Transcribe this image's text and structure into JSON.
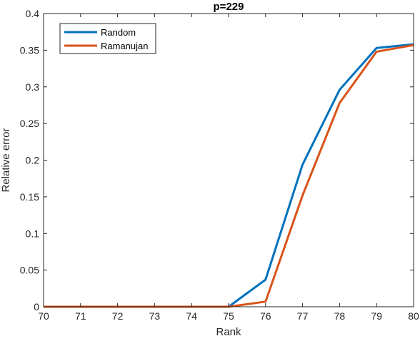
{
  "chart_data": {
    "type": "line",
    "title": "p=229",
    "xlabel": "Rank",
    "ylabel": "Relative error",
    "xlim": [
      70,
      80
    ],
    "ylim": [
      0,
      0.4
    ],
    "x_ticks": [
      "70",
      "71",
      "72",
      "73",
      "74",
      "75",
      "76",
      "77",
      "78",
      "79",
      "80"
    ],
    "y_ticks": [
      "0",
      "0.05",
      "0.1",
      "0.15",
      "0.2",
      "0.25",
      "0.3",
      "0.35",
      "0.4"
    ],
    "x": [
      70,
      71,
      72,
      73,
      74,
      75,
      76,
      77,
      78,
      79,
      80
    ],
    "series": [
      {
        "name": "Random",
        "color": "#0072BD",
        "values": [
          0,
          0,
          0,
          0,
          0,
          0,
          0.037,
          0.194,
          0.296,
          0.353,
          0.358
        ]
      },
      {
        "name": "Ramanujan",
        "color": "#D95319",
        "values": [
          0,
          0,
          0,
          0,
          0,
          0,
          0.007,
          0.152,
          0.278,
          0.348,
          0.357
        ]
      }
    ],
    "legend_position": "top-left",
    "grid": false,
    "box": true
  }
}
